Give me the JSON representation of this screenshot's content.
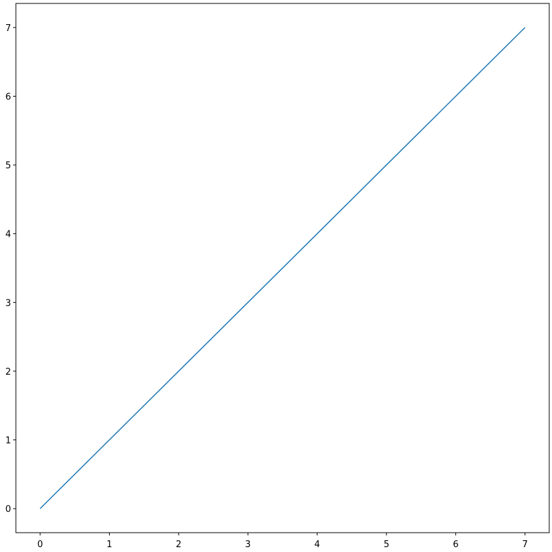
{
  "chart_data": {
    "type": "line",
    "title": "",
    "xlabel": "",
    "ylabel": "",
    "x": [
      0,
      1,
      2,
      3,
      4,
      5,
      6,
      7
    ],
    "series": [
      {
        "values": [
          0,
          1,
          2,
          3,
          4,
          5,
          6,
          7
        ],
        "color": "#1f77b4"
      }
    ],
    "xlim": [
      -0.35,
      7.35
    ],
    "ylim": [
      -0.35,
      7.35
    ],
    "xticks": [
      "0",
      "1",
      "2",
      "3",
      "4",
      "5",
      "6",
      "7"
    ],
    "yticks": [
      "0",
      "1",
      "2",
      "3",
      "4",
      "5",
      "6",
      "7"
    ],
    "grid": false,
    "legend": "none"
  }
}
